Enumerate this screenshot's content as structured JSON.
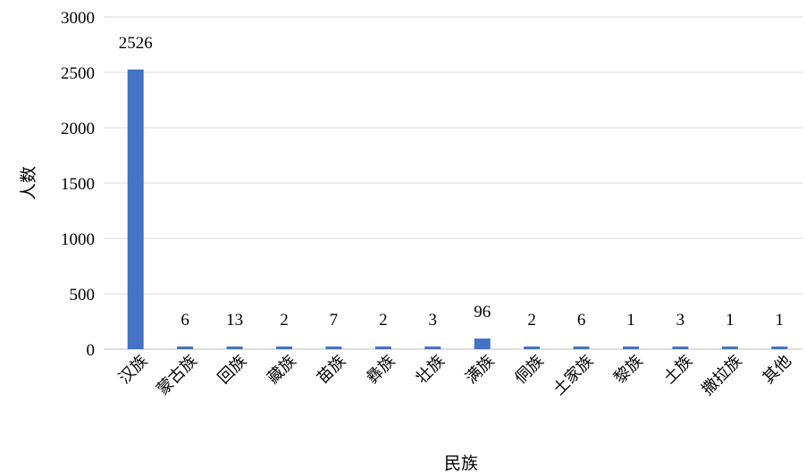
{
  "chart_data": {
    "type": "bar",
    "categories": [
      "汉族",
      "蒙古族",
      "回族",
      "藏族",
      "苗族",
      "彝族",
      "壮族",
      "满族",
      "侗族",
      "土家族",
      "黎族",
      "土族",
      "撒拉族",
      "其他"
    ],
    "values": [
      2526,
      6,
      13,
      2,
      7,
      2,
      3,
      96,
      2,
      6,
      1,
      3,
      1,
      1
    ],
    "data_labels": [
      "2526",
      "6",
      "13",
      "2",
      "7",
      "2",
      "3",
      "96",
      "2",
      "6",
      "1",
      "3",
      "1",
      "1"
    ],
    "xlabel": "民族",
    "ylabel": "人数",
    "ylim": [
      0,
      3000
    ],
    "yticks": [
      "0",
      "500",
      "1000",
      "1500",
      "2000",
      "2500",
      "3000"
    ],
    "grid": true,
    "legend": "none",
    "bar_color": "#4472c4"
  }
}
